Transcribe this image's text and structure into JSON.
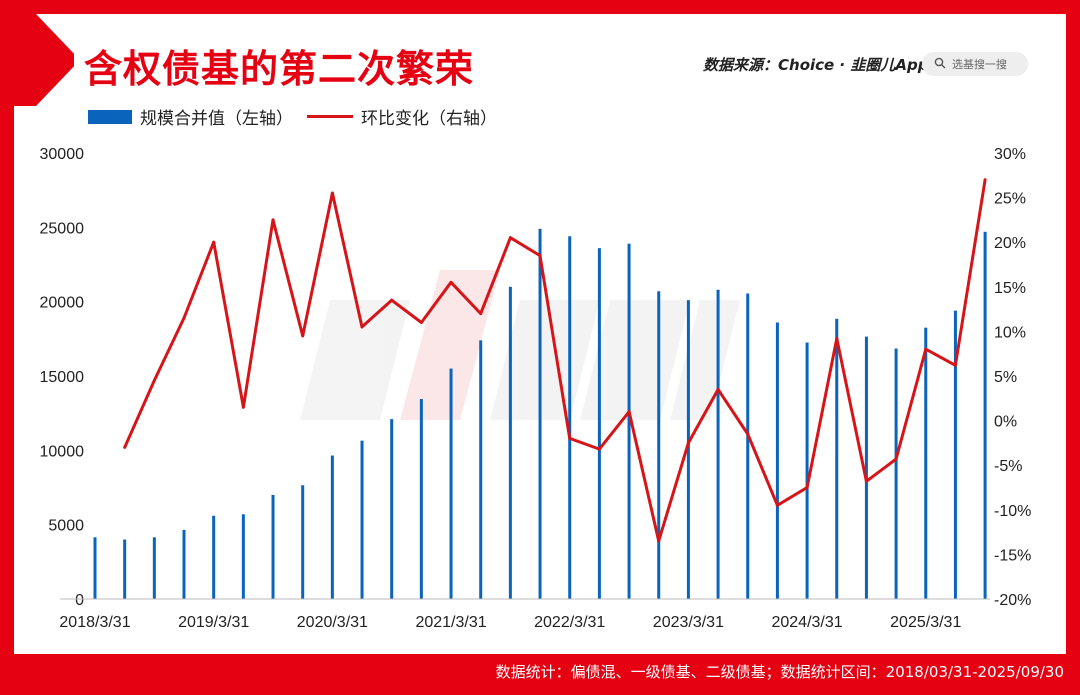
{
  "header": {
    "title": "含权债基的第二次繁荣",
    "source_label": "数据来源：",
    "source_value": "Choice · 韭圈儿App",
    "search_placeholder": "选基搜一搜"
  },
  "footer": {
    "note": "数据统计：偏债混、一级债基、二级债基；数据统计区间：2018/03/31-2025/09/30"
  },
  "colors": {
    "frame": "#e50012",
    "bar": "#0a64bc",
    "line": "#d61518"
  },
  "chart_data": {
    "type": "bar",
    "legend_position": "top-left",
    "grid": false,
    "x": [
      "2018/3/31",
      "2018/6/30",
      "2018/9/30",
      "2018/12/31",
      "2019/3/31",
      "2019/6/30",
      "2019/9/30",
      "2019/12/31",
      "2020/3/31",
      "2020/6/30",
      "2020/9/30",
      "2020/12/31",
      "2021/3/31",
      "2021/6/30",
      "2021/9/30",
      "2021/12/31",
      "2022/3/31",
      "2022/6/30",
      "2022/9/30",
      "2022/12/31",
      "2023/3/31",
      "2023/6/30",
      "2023/9/30",
      "2023/12/31",
      "2024/3/31",
      "2024/6/30",
      "2024/9/30",
      "2024/12/31",
      "2025/3/31",
      "2025/6/30",
      "2025/9/30"
    ],
    "x_tick_labels": [
      "2018/3/31",
      "2019/3/31",
      "2020/3/31",
      "2021/3/31",
      "2022/3/31",
      "2023/3/31",
      "2024/3/31",
      "2025/3/31"
    ],
    "y_left": {
      "ticks": [
        "0",
        "5000",
        "10000",
        "15000",
        "20000",
        "25000",
        "30000"
      ],
      "range": [
        0,
        30000
      ]
    },
    "y_right": {
      "ticks": [
        "-20%",
        "-15%",
        "-10%",
        "-5%",
        "0%",
        "5%",
        "10%",
        "15%",
        "20%",
        "25%",
        "30%"
      ],
      "range": [
        -20,
        30
      ],
      "unit": "%"
    },
    "series": [
      {
        "name": "规模合并值（左轴）",
        "type": "bar",
        "axis": "left",
        "values": [
          4150,
          4000,
          4150,
          4650,
          5600,
          5700,
          7000,
          7650,
          9650,
          10650,
          12100,
          13450,
          15500,
          17400,
          21000,
          24900,
          24400,
          23600,
          23900,
          20700,
          20100,
          20800,
          20550,
          18600,
          17250,
          18850,
          17650,
          16850,
          18250,
          19400,
          24700
        ]
      },
      {
        "name": "环比变化（右轴）",
        "type": "line",
        "axis": "right",
        "values": [
          null,
          -3.0,
          4.5,
          11.5,
          20.0,
          1.5,
          22.5,
          9.5,
          25.5,
          10.5,
          13.5,
          11.0,
          15.5,
          12.0,
          20.5,
          18.5,
          -2.0,
          -3.2,
          1.0,
          -13.5,
          -2.5,
          3.5,
          -1.5,
          -9.5,
          -7.5,
          9.2,
          -6.8,
          -4.3,
          8.0,
          6.2,
          27.0
        ]
      }
    ]
  }
}
